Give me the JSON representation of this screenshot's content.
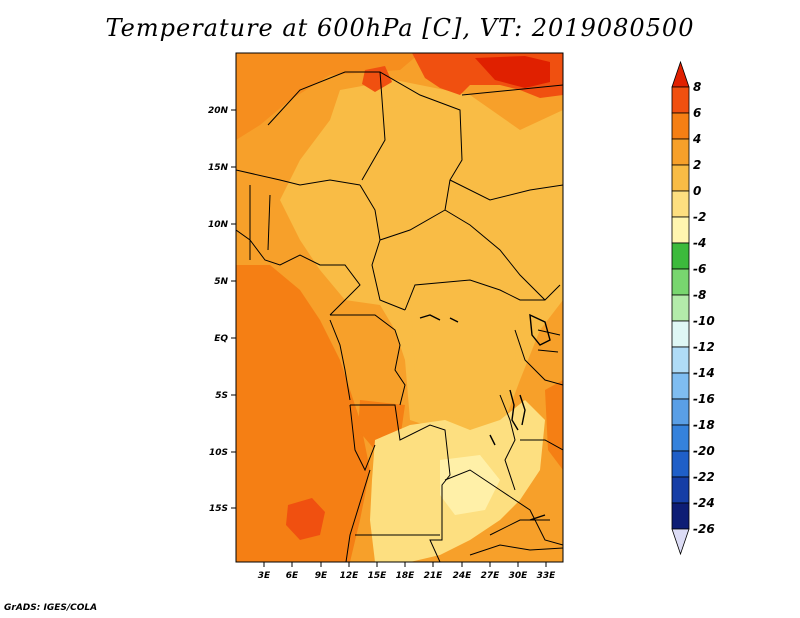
{
  "title": "Temperature at 600hPa [C], VT: 2019080500",
  "credit": "GrADS: IGES/COLA",
  "map": {
    "lat_labels": [
      "20N",
      "15N",
      "10N",
      "5N",
      "EQ",
      "5S",
      "10S",
      "15S"
    ],
    "lon_labels": [
      "3E",
      "6E",
      "9E",
      "12E",
      "15E",
      "18E",
      "21E",
      "24E",
      "27E",
      "30E",
      "33E"
    ]
  },
  "colorbar": {
    "labels": [
      "8",
      "6",
      "4",
      "2",
      "0",
      "-2",
      "-4",
      "-6",
      "-8",
      "-10",
      "-12",
      "-14",
      "-16",
      "-18",
      "-20",
      "-22",
      "-24",
      "-26"
    ],
    "colors": [
      "#e02000",
      "#f05010",
      "#f57f14",
      "#f7a02a",
      "#f9bc45",
      "#fddf80",
      "#fff6b0",
      "#3cba3c",
      "#78d66f",
      "#b3ebaa",
      "#dff7f5",
      "#b0dcf7",
      "#7fbdf1",
      "#5a9fe6",
      "#3582dc",
      "#1f5fc8",
      "#163ea6",
      "#0d1d75",
      "#dcdcf5"
    ]
  },
  "palette": {
    "deep_orange": "#f57f14",
    "orange": "#f7a02a",
    "light_orange": "#f9bc45",
    "pale_yellow": "#fddf80",
    "red": "#e02000",
    "red_orange": "#f05010"
  }
}
